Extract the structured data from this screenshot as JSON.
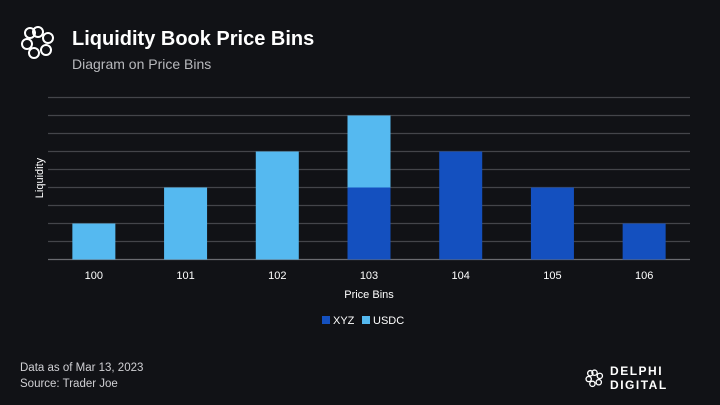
{
  "header": {
    "title": "Liquidity Book Price Bins",
    "subtitle": "Diagram on Price Bins"
  },
  "chart_data": {
    "type": "bar",
    "stacked": true,
    "title": "Liquidity Book Price Bins",
    "xlabel": "Price Bins",
    "ylabel": "Liquidity",
    "categories": [
      "100",
      "101",
      "102",
      "103",
      "104",
      "105",
      "106"
    ],
    "series": [
      {
        "name": "XYZ",
        "color": "#1450bf",
        "values": [
          0,
          0,
          0,
          4,
          6,
          4,
          2
        ]
      },
      {
        "name": "USDC",
        "color": "#55b9f0",
        "values": [
          2,
          4,
          6,
          4,
          0,
          0,
          0
        ]
      }
    ],
    "ylim": [
      0,
      9
    ],
    "grid": true,
    "legend": "bottom-center"
  },
  "footer": {
    "date": "Data as of Mar 13, 2023",
    "source": "Source: Trader Joe",
    "brand": "DELPHI DIGITAL"
  }
}
